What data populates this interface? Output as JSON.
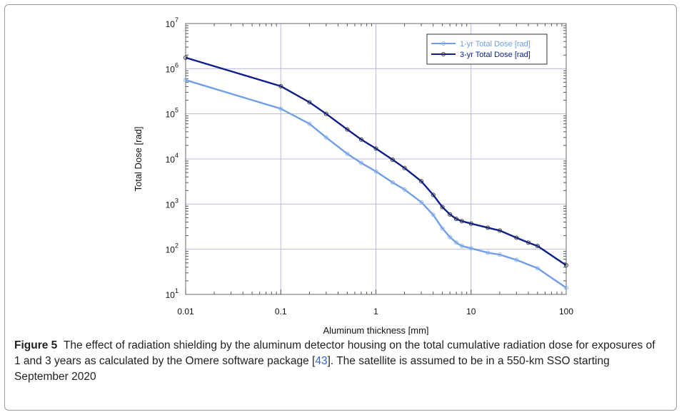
{
  "chart_data": {
    "type": "line",
    "xscale": "log",
    "yscale": "log",
    "xlabel": "Aluminum thickness [mm]",
    "ylabel": "Total Dose [rad]",
    "xlim": [
      0.01,
      100
    ],
    "ylim": [
      10,
      10000000
    ],
    "x_ticks": [
      {
        "value": 0.01,
        "label": "0.01"
      },
      {
        "value": 0.1,
        "label": "0.1"
      },
      {
        "value": 1,
        "label": "1"
      },
      {
        "value": 10,
        "label": "10"
      },
      {
        "value": 100,
        "label": "100"
      }
    ],
    "y_ticks": [
      {
        "value": 10,
        "base": "10",
        "exp": "1"
      },
      {
        "value": 100,
        "base": "10",
        "exp": "2"
      },
      {
        "value": 1000,
        "base": "10",
        "exp": "3"
      },
      {
        "value": 10000,
        "base": "10",
        "exp": "4"
      },
      {
        "value": 100000,
        "base": "10",
        "exp": "5"
      },
      {
        "value": 1000000,
        "base": "10",
        "exp": "6"
      },
      {
        "value": 10000000,
        "base": "10",
        "exp": "7"
      }
    ],
    "grid": true,
    "legend_position": "top-right",
    "series": [
      {
        "name": "1-yr Total Dose [rad]",
        "color": "#6f9ee6",
        "x": [
          0.01,
          0.1,
          0.2,
          0.3,
          0.5,
          0.7,
          1,
          1.5,
          2,
          3,
          4,
          5,
          6,
          7,
          8,
          10,
          15,
          20,
          30,
          50,
          100
        ],
        "y": [
          560000,
          130000,
          60000,
          30000,
          13000,
          8200,
          5300,
          3000,
          2100,
          1100,
          580,
          290,
          185,
          140,
          118,
          105,
          84,
          76,
          58,
          38,
          14
        ]
      },
      {
        "name": "3-yr Total Dose [rad]",
        "color": "#0d1e8c",
        "x": [
          0.01,
          0.1,
          0.2,
          0.3,
          0.5,
          0.7,
          1,
          1.5,
          2,
          3,
          4,
          5,
          6,
          7,
          8,
          10,
          15,
          20,
          30,
          40,
          50,
          100
        ],
        "y": [
          1750000,
          410000,
          180000,
          100000,
          45000,
          27000,
          17000,
          9600,
          6300,
          3200,
          1600,
          860,
          590,
          470,
          420,
          370,
          300,
          260,
          180,
          140,
          118,
          44
        ]
      }
    ]
  },
  "caption": {
    "figure_label": "Figure 5",
    "text_before_ref": "The effect of radiation shielding by the aluminum detector housing on the total cumulative radiation dose for exposures of 1 and 3 years as calculated by the Omere software package [",
    "ref": "43",
    "text_after_ref": "]. The satellite is assumed to be in a 550-km SSO starting September 2020"
  }
}
